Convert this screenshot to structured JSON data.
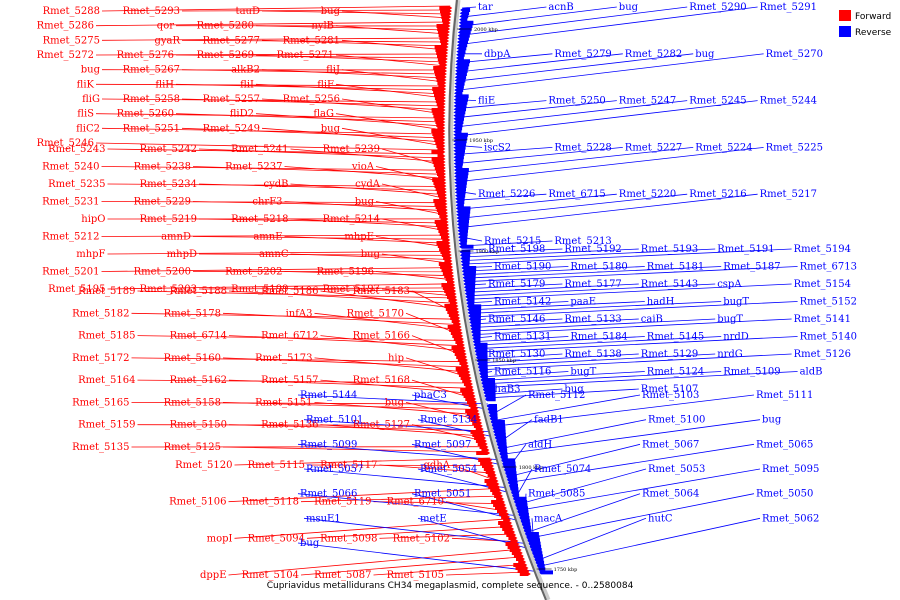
{
  "caption": "Cupriavidus metallidurans CH34 megaplasmid, complete sequence. - 0..2580084",
  "legend": {
    "forward": {
      "label": "Forward",
      "color": "#ff0000"
    },
    "reverse": {
      "label": "Reverse",
      "color": "#0000ff"
    }
  },
  "ticks": [
    "2000 kbp",
    "1950 kbp",
    "1900 kbp",
    "1850 kbp",
    "1800 kbp",
    "1750 kbp"
  ],
  "forward_labels": [
    [
      "Rmet_5288",
      "Rmet_5293",
      "tauD",
      "bug",
      "Rmet_5286",
      "qor",
      "Rmet_5280",
      "nylB",
      "Rmet_5275",
      "gyaR",
      "Rmet_5277",
      "Rmet_5281",
      "Rmet_5272",
      "Rmet_5276",
      "Rmet_5269",
      "Rmet_5271",
      "bug",
      "Rmet_5267",
      "alkB2",
      "fliJ",
      "fliK",
      "fliH",
      "fliI",
      "fliF",
      "fliG",
      "Rmet_5258",
      "Rmet_5257",
      "Rmet_5256",
      "fliS",
      "Rmet_5260",
      "fliD2",
      "flaG",
      "fliC2",
      "Rmet_5251",
      "Rmet_5249",
      "bug",
      "Rmet_5246"
    ],
    [
      "Rmet_5243",
      "Rmet_5242",
      "Rmet_5241",
      "Rmet_5239",
      "Rmet_5240",
      "Rmet_5238",
      "Rmet_5237",
      "vioA",
      "Rmet_5235",
      "Rmet_5234",
      "cydB",
      "cydA",
      "Rmet_5231",
      "Rmet_5229",
      "chrF3",
      "bug",
      "hipO",
      "Rmet_5219",
      "Rmet_5218",
      "Rmet_5214",
      "Rmet_5212",
      "amnD",
      "amnE",
      "mhpE",
      "mhpF",
      "mhpD",
      "amnC",
      "bug",
      "Rmet_5201",
      "Rmet_5200",
      "Rmet_5202",
      "Rmet_5196",
      "Rmet_5195",
      "Rmet_5203",
      "Rmet_5199",
      "Rmet_5197"
    ],
    [
      "Rmet_5189",
      "Rmet_5188",
      "Rmet_5186",
      "Rmet_5183",
      "Rmet_5182",
      "Rmet_5178",
      "infA3",
      "Rmet_5170",
      "Rmet_5185",
      "Rmet_6714",
      "Rmet_6712",
      "Rmet_5166",
      "Rmet_5172",
      "Rmet_5160",
      "Rmet_5173",
      "hip",
      "Rmet_5164",
      "Rmet_5162",
      "Rmet_5157",
      "Rmet_5168",
      "Rmet_5165",
      "Rmet_5158",
      "Rmet_5151",
      "bug",
      "Rmet_5159",
      "Rmet_5150",
      "Rmet_5136",
      "Rmet_5127",
      "Rmet_5135",
      "Rmet_5125"
    ],
    [
      "Rmet_5120",
      "Rmet_5115",
      "Rmet_5117",
      "gdhA",
      "Rmet_5106",
      "Rmet_5118",
      "Rmet_5119",
      "Rmet_6710",
      "mopI",
      "Rmet_5094",
      "Rmet_5098",
      "Rmet_5102",
      "dppE",
      "Rmet_5104",
      "Rmet_5087",
      "Rmet_5105"
    ]
  ],
  "reverse_labels": [
    [
      "tar",
      "acnB",
      "bug",
      "Rmet_5290",
      "Rmet_5291",
      "dbpA",
      "Rmet_5279",
      "Rmet_5282",
      "bug",
      "Rmet_5270",
      "fliE",
      "Rmet_5250",
      "Rmet_5247",
      "Rmet_5245",
      "Rmet_5244",
      "iscS2",
      "Rmet_5228",
      "Rmet_5227",
      "Rmet_5224",
      "Rmet_5225",
      "Rmet_5226",
      "Rmet_6715",
      "Rmet_5220",
      "Rmet_5216",
      "Rmet_5217",
      "Rmet_5215",
      "Rmet_5213"
    ],
    [
      "Rmet_5198",
      "Rmet_5192",
      "Rmet_5193",
      "Rmet_5191",
      "Rmet_5194",
      "Rmet_5190",
      "Rmet_5180",
      "Rmet_5181",
      "Rmet_5187",
      "Rmet_6713",
      "Rmet_5179",
      "Rmet_5177",
      "Rmet_5143",
      "cspA",
      "Rmet_5154",
      "Rmet_5142",
      "paaE",
      "hadH",
      "bugT",
      "Rmet_5152",
      "Rmet_5146",
      "Rmet_5133",
      "caiB",
      "bugT",
      "Rmet_5141",
      "Rmet_5131",
      "Rmet_5184",
      "Rmet_5145",
      "nrdD",
      "Rmet_5140",
      "Rmet_5130",
      "Rmet_5138",
      "Rmet_5129",
      "nrdG",
      "Rmet_5126",
      "Rmet_5116",
      "bugT",
      "Rmet_5124",
      "Rmet_5109",
      "aldB",
      "phaB3",
      "bug",
      "Rmet_5107"
    ],
    [
      "Rmet_5144",
      "phaC3",
      "Rmet_5112",
      "Rmet_5103",
      "Rmet_5111",
      "Rmet_5101",
      "Rmet_5134",
      "fadB1",
      "Rmet_5100",
      "bug",
      "Rmet_5099",
      "Rmet_5097",
      "aldH",
      "Rmet_5067",
      "Rmet_5065",
      "Rmet_5057",
      "Rmet_5054",
      "Rmet_5074",
      "Rmet_5053",
      "Rmet_5095",
      "Rmet_5066",
      "Rmet_5051",
      "Rmet_5085",
      "Rmet_5064",
      "Rmet_5050",
      "msuE1",
      "metE",
      "macA",
      "hutC",
      "Rmet_5062",
      "bug"
    ]
  ]
}
